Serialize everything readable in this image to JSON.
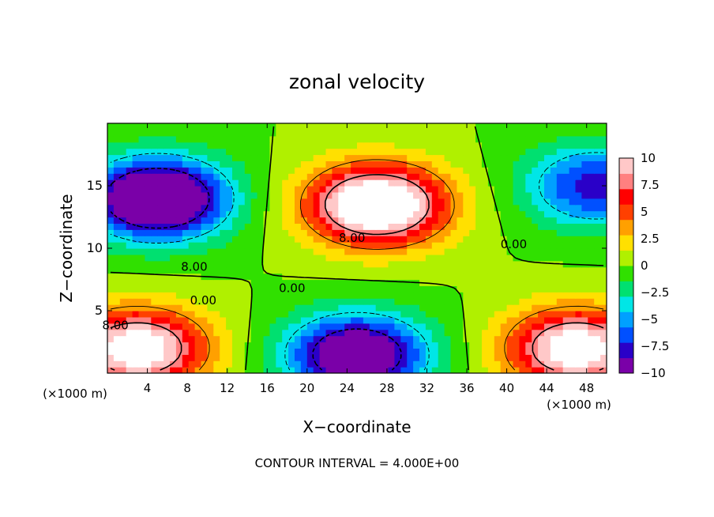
{
  "chart_data": {
    "type": "heatmap",
    "title": "zonal velocity",
    "xlabel": "X−coordinate",
    "ylabel": "Z−coordinate",
    "x_unit_left": "(×1000 m)",
    "x_unit_right": "(×1000 m)",
    "footer": "CONTOUR INTERVAL = 4.000E+00",
    "xlim": [
      0,
      50
    ],
    "ylim": [
      0,
      20
    ],
    "x_ticks": [
      4,
      8,
      12,
      16,
      20,
      24,
      28,
      32,
      36,
      40,
      44,
      48
    ],
    "y_ticks": [
      5,
      10,
      15
    ],
    "colorbar": {
      "ticks": [
        10,
        7.5,
        5,
        2.5,
        0,
        -2.5,
        -5,
        -7.5,
        -10
      ],
      "tick_labels": [
        "10",
        "7.5",
        "5",
        "2.5",
        "0",
        "−2.5",
        "−5",
        "−7.5",
        "−10"
      ],
      "range": [
        -10,
        10
      ],
      "colors": [
        "#7a00a8",
        "#2a00c8",
        "#0050ff",
        "#00a0ff",
        "#00e6e6",
        "#00e070",
        "#30e000",
        "#b0f000",
        "#ffe000",
        "#ffa000",
        "#ff4000",
        "#ff0000",
        "#ff8080",
        "#ffc8c8"
      ]
    },
    "contour_interval": 4.0,
    "contour_labels": [
      {
        "text": "8.00",
        "x": 8.7,
        "z": 8.2
      },
      {
        "text": "0.00",
        "x": 9.6,
        "z": 5.5
      },
      {
        "text": "8.00",
        "x": 0.8,
        "z": 3.5
      },
      {
        "text": "0.00",
        "x": 18.5,
        "z": 6.5
      },
      {
        "text": "8.00",
        "x": 24.5,
        "z": 10.5
      },
      {
        "text": "0.00",
        "x": 40.7,
        "z": 10.0
      }
    ],
    "features": [
      {
        "x": 5,
        "z": 14,
        "value": -14,
        "note": "strong negative core upper left"
      },
      {
        "x": 27,
        "z": 13.5,
        "value": 14,
        "note": "strong positive core upper center"
      },
      {
        "x": 3,
        "z": 2,
        "value": 12,
        "note": "positive near surface left"
      },
      {
        "x": 25,
        "z": 1.5,
        "value": -12,
        "note": "negative near surface center"
      },
      {
        "x": 47,
        "z": 2,
        "value": 12,
        "note": "positive near surface right"
      },
      {
        "x": 49,
        "z": 15,
        "value": -8,
        "note": "negative upper right"
      }
    ]
  }
}
